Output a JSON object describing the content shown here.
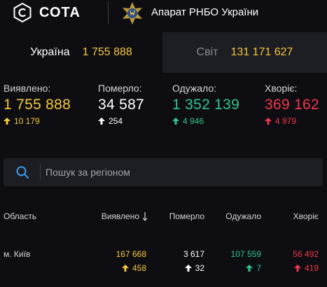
{
  "header": {
    "brand": "СОТА",
    "subtitle": "Апарат РНБО України",
    "brand_logo_icon": "cota-logo-icon",
    "emblem_icon": "rnbo-emblem-icon"
  },
  "tabs": [
    {
      "label": "Україна",
      "value": "1 755 888",
      "active": true
    },
    {
      "label": "Світ",
      "value": "131 171 627",
      "active": false
    }
  ],
  "stats": {
    "detected": {
      "label": "Виявлено:",
      "value": "1 755 888",
      "delta": "10 179"
    },
    "died": {
      "label": "Померло:",
      "value": "34 587",
      "delta": "254"
    },
    "recovered": {
      "label": "Одужало:",
      "value": "1 352 139",
      "delta": "4 946"
    },
    "sick": {
      "label": "Хворіє:",
      "value": "369 162",
      "delta": "4 979"
    }
  },
  "search": {
    "placeholder": "Пошук за регіоном",
    "value": ""
  },
  "table": {
    "columns": {
      "region": "Область",
      "detected": "Виявлено",
      "died": "Померло",
      "recovered": "Одужало",
      "sick": "Хворіє"
    },
    "rows": [
      {
        "region": "м. Київ",
        "detected": "167 668",
        "detected_delta": "458",
        "died": "3 617",
        "died_delta": "32",
        "recovered": "107 559",
        "recovered_delta": "7",
        "sick": "56 492",
        "sick_delta": "419"
      }
    ]
  },
  "colors": {
    "background": "#0e0e12",
    "panel": "#1d1d24",
    "yellow": "#f4c83a",
    "green": "#2fc48d",
    "red": "#f0364c"
  }
}
